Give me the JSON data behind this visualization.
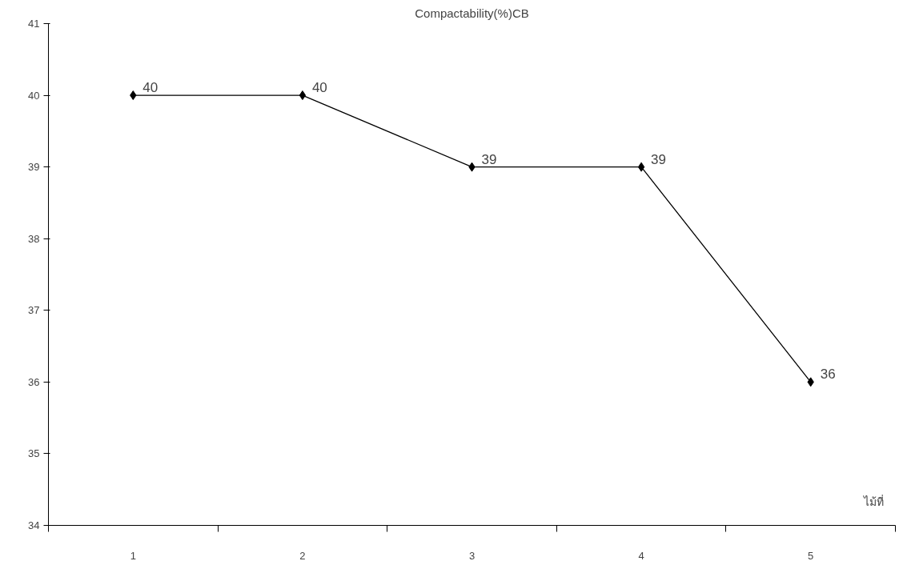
{
  "chart_data": {
    "type": "line",
    "title": "Compactability(%)CB",
    "xlabel": "ไม้ที่",
    "categories": [
      "1",
      "2",
      "3",
      "4",
      "5"
    ],
    "series": [
      {
        "color": "#000000",
        "values": [
          40,
          40,
          39,
          39,
          36
        ]
      }
    ],
    "ylim": [
      34,
      41
    ],
    "yticks": [
      34,
      35,
      36,
      37,
      38,
      39,
      40,
      41
    ],
    "data_labels": true,
    "marker": "diamond",
    "line_style": "solid",
    "grid": false
  }
}
